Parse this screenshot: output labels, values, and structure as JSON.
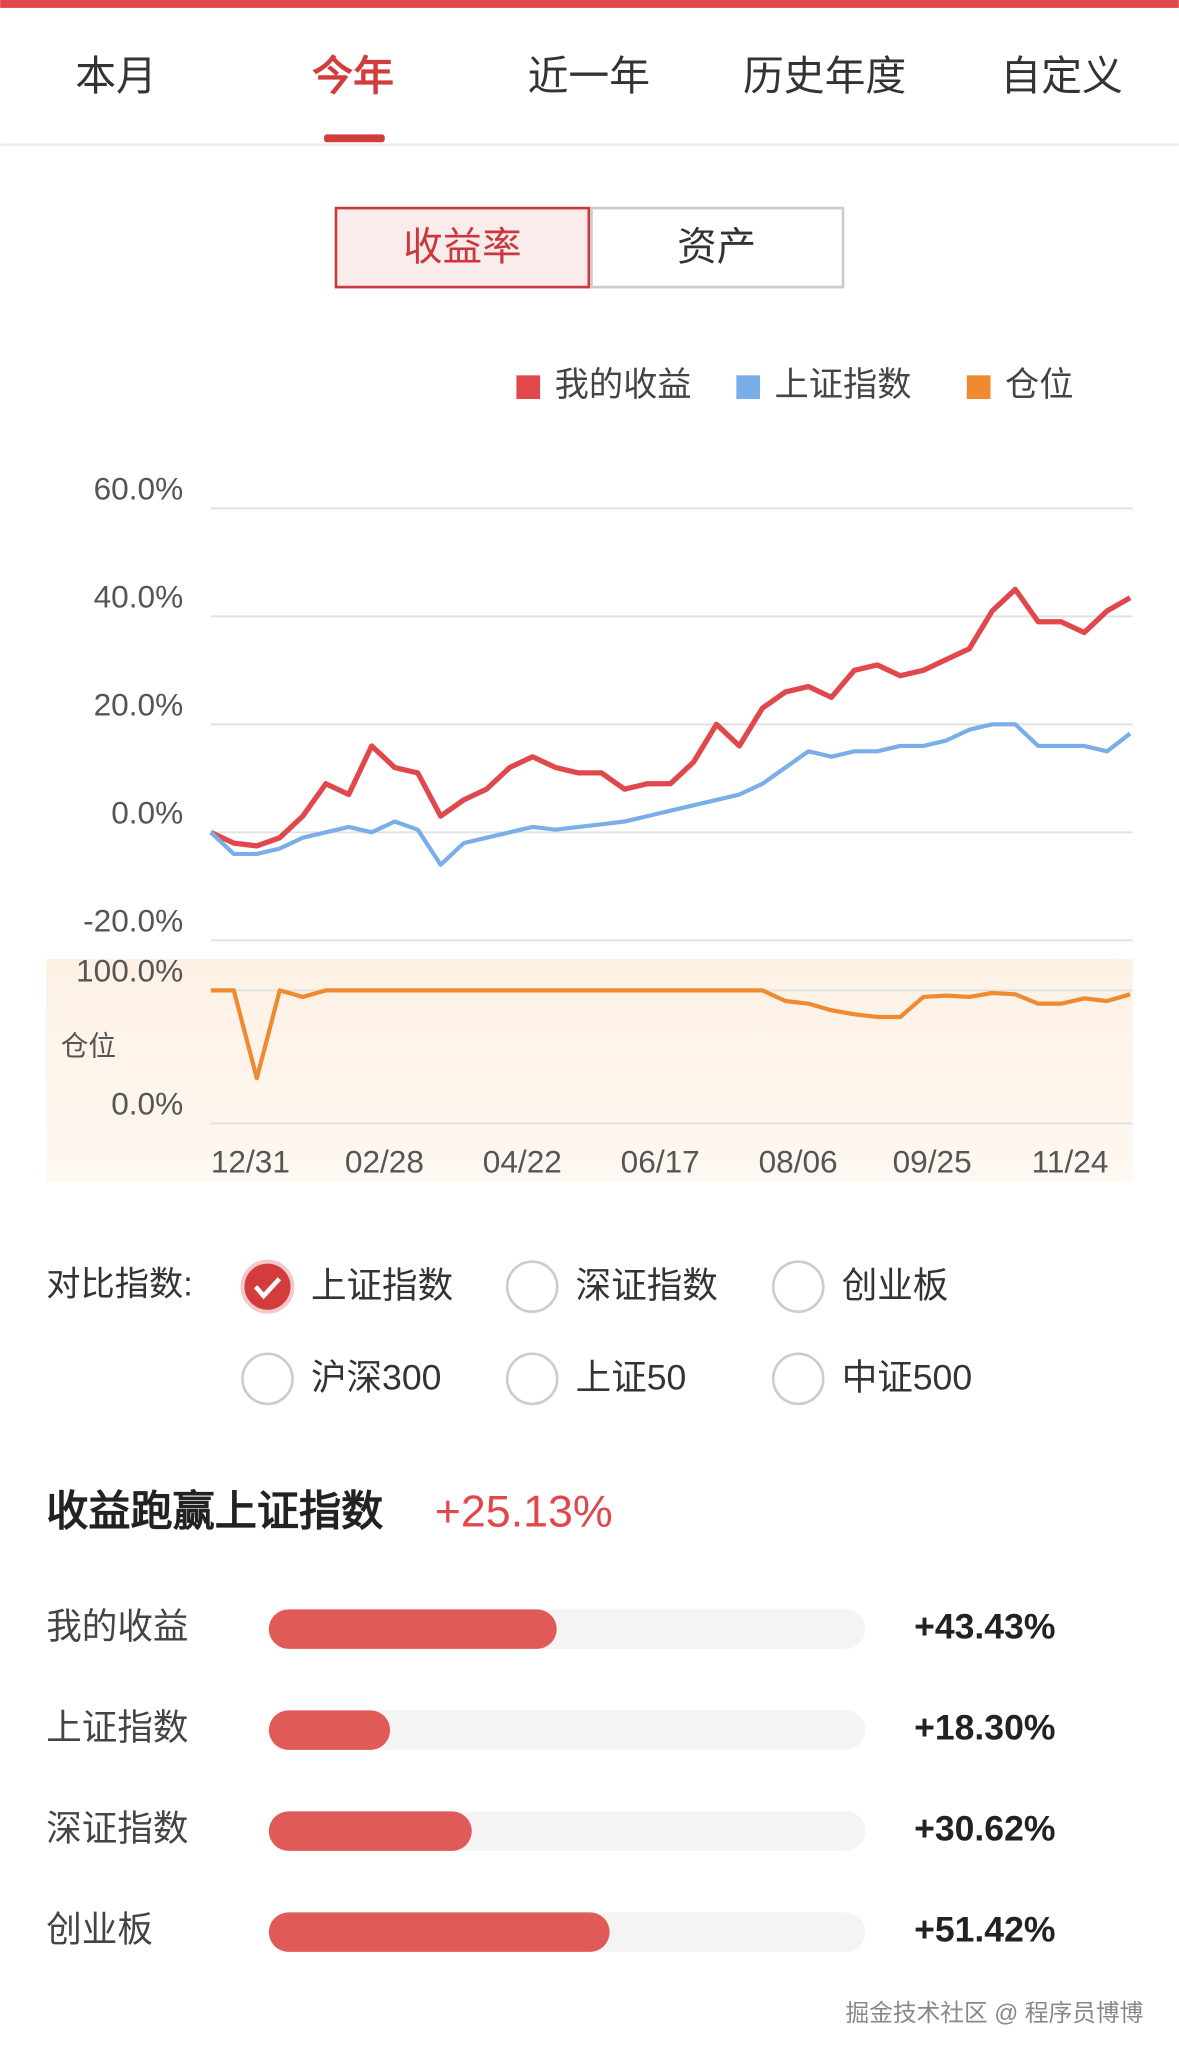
{
  "tabs": [
    "本月",
    "今年",
    "近一年",
    "历史年度",
    "自定义"
  ],
  "toggle": [
    "收益率",
    "资产"
  ],
  "chart_data": [
    {
      "type": "line",
      "x": [
        0,
        6,
        12,
        18,
        24,
        30,
        36,
        42,
        48,
        54,
        60,
        66,
        72,
        78,
        84,
        90,
        96,
        102,
        108,
        114,
        120,
        126,
        132,
        138,
        144,
        150,
        156,
        162,
        168,
        174,
        180,
        186,
        192,
        198,
        204,
        210,
        216,
        222,
        228,
        234,
        240
      ],
      "xlim": [
        0,
        240
      ],
      "xticks": [
        {
          "value": 0,
          "label": "12/31"
        },
        {
          "value": 35,
          "label": "02/28"
        },
        {
          "value": 71,
          "label": "04/22"
        },
        {
          "value": 107,
          "label": "06/17"
        },
        {
          "value": 143,
          "label": "08/06"
        },
        {
          "value": 178,
          "label": "09/25"
        },
        {
          "value": 214,
          "label": "11/24"
        }
      ],
      "ylim": [
        -20,
        60
      ],
      "yticks": [
        {
          "value": 60,
          "label": "60.0%"
        },
        {
          "value": 40,
          "label": "40.0%"
        },
        {
          "value": 20,
          "label": "20.0%"
        },
        {
          "value": 0,
          "label": "0.0%"
        },
        {
          "value": -20,
          "label": "-20.0%"
        }
      ],
      "grid": true,
      "series": [
        {
          "name": "我的收益",
          "color": "#e0484c",
          "values": [
            0,
            -2,
            -2.5,
            -1,
            3,
            9,
            7,
            16,
            12,
            11,
            3,
            6,
            8,
            12,
            14,
            12,
            11,
            11,
            8,
            9,
            9,
            13,
            20,
            16,
            23,
            26,
            27,
            25,
            30,
            31,
            29,
            30,
            32,
            34,
            41,
            45,
            39,
            39,
            37,
            41,
            43.43
          ]
        },
        {
          "name": "上证指数",
          "color": "#7aaee8",
          "values": [
            0,
            -4,
            -4,
            -3,
            -1,
            0,
            1,
            0,
            2,
            0.5,
            -6,
            -2,
            -1,
            0,
            1,
            0.5,
            1,
            1.5,
            2,
            3,
            4,
            5,
            6,
            7,
            9,
            12,
            15,
            14,
            15,
            15,
            16,
            16,
            17,
            19,
            20,
            20,
            16,
            16,
            16,
            15,
            18.3
          ]
        }
      ]
    },
    {
      "type": "line",
      "x": [
        0,
        6,
        12,
        18,
        24,
        30,
        36,
        42,
        48,
        54,
        60,
        66,
        72,
        78,
        84,
        90,
        96,
        102,
        108,
        114,
        120,
        126,
        132,
        138,
        144,
        150,
        156,
        162,
        168,
        174,
        180,
        186,
        192,
        198,
        204,
        210,
        216,
        222,
        228,
        234,
        240
      ],
      "xlim": [
        0,
        240
      ],
      "ylim": [
        0,
        100
      ],
      "ylabel": "仓位",
      "yticks": [
        {
          "value": 100,
          "label": "100.0%"
        },
        {
          "value": 0,
          "label": "0.0%"
        }
      ],
      "grid": true,
      "series": [
        {
          "name": "仓位",
          "color": "#f08a30",
          "values": [
            100,
            100,
            34,
            100,
            95,
            100,
            100,
            100,
            100,
            100,
            100,
            100,
            100,
            100,
            100,
            100,
            100,
            100,
            100,
            100,
            100,
            100,
            100,
            100,
            100,
            92,
            90,
            85,
            82,
            80,
            80,
            95,
            96,
            95,
            98,
            97,
            90,
            90,
            94,
            92,
            97
          ]
        }
      ]
    },
    {
      "type": "bar",
      "orientation": "horizontal",
      "title": "收益跑赢上证指数",
      "title_value": "+25.13%",
      "categories": [
        "我的收益",
        "上证指数",
        "深证指数",
        "创业板"
      ],
      "values": [
        43.43,
        18.3,
        30.62,
        51.42
      ],
      "value_labels": [
        "+43.43%",
        "+18.30%",
        "+30.62%",
        "+51.42%"
      ],
      "xlim": [
        0,
        90
      ],
      "color": "#e05a58"
    }
  ],
  "compare": {
    "label": "对比指数:",
    "options": [
      "上证指数",
      "深证指数",
      "创业板",
      "沪深300",
      "上证50",
      "中证500"
    ]
  },
  "watermark": "掘金技术社区 @ 程序员博博"
}
